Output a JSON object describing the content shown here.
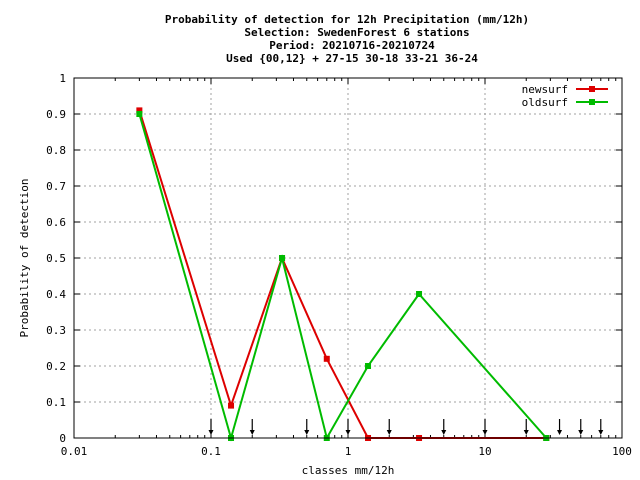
{
  "chart_data": {
    "type": "line",
    "title_lines": [
      "Probability of detection  for 12h Precipitation (mm/12h)",
      "Selection: SwedenForest      6 stations",
      "Period: 20210716-20210724",
      "Used {00,12} + 27-15 30-18 33-21 36-24"
    ],
    "xlabel": "classes mm/12h",
    "ylabel": "Probability of detection",
    "xscale": "log",
    "xlim": [
      0.01,
      100
    ],
    "ylim": [
      0,
      1
    ],
    "x_ticks": [
      0.01,
      0.1,
      1,
      10,
      100
    ],
    "x_tick_labels": [
      "0.01",
      "0.1",
      "1",
      "10",
      "100"
    ],
    "y_ticks": [
      0,
      0.1,
      0.2,
      0.3,
      0.4,
      0.5,
      0.6,
      0.7,
      0.8,
      0.9,
      1
    ],
    "y_tick_labels": [
      "0",
      "0.1",
      "0.2",
      "0.3",
      "0.4",
      "0.5",
      "0.6",
      "0.7",
      "0.8",
      "0.9",
      "1"
    ],
    "grid": true,
    "legend_position": "top-right",
    "series": [
      {
        "name": "newsurf",
        "color": "#dd0000",
        "x": [
          0.03,
          0.14,
          0.33,
          0.7,
          1.4,
          3.3,
          28
        ],
        "y": [
          0.91,
          0.09,
          0.5,
          0.22,
          0.0,
          0.0,
          0.0
        ]
      },
      {
        "name": "oldsurf",
        "color": "#00bb00",
        "x": [
          0.03,
          0.14,
          0.33,
          0.7,
          1.4,
          3.3,
          28
        ],
        "y": [
          0.9,
          0.0,
          0.5,
          0.0,
          0.2,
          0.4,
          0.0
        ]
      }
    ],
    "class_markers": [
      0.1,
      0.2,
      0.5,
      1,
      2,
      5,
      10,
      20,
      35,
      50,
      70
    ]
  }
}
